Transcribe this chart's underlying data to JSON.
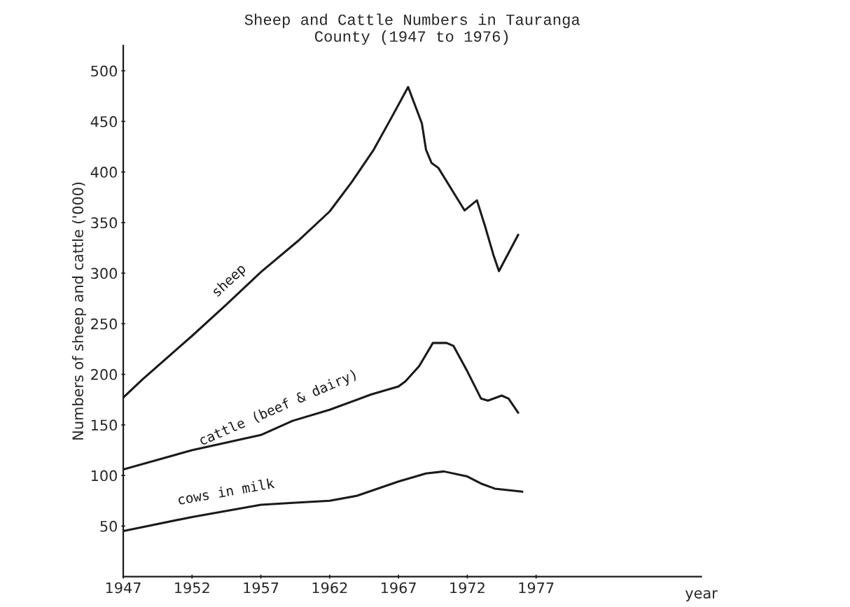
{
  "chart_data": {
    "type": "line",
    "title": "Sheep and Cattle Numbers in Tauranga\nCounty (1947 to 1976)",
    "xlabel": "year",
    "ylabel": "Numbers of sheep and cattle ('000)",
    "xlim": [
      1947,
      1989
    ],
    "xticks": [
      1947,
      1952,
      1957,
      1962,
      1967,
      1972,
      1977
    ],
    "ylim": [
      0,
      525
    ],
    "yticks": [
      50,
      100,
      150,
      200,
      250,
      300,
      350,
      400,
      450,
      500
    ],
    "grid": false,
    "legend": false,
    "marker": "none",
    "line_style": "solid",
    "series": [
      {
        "name": "sheep",
        "color": "#1a1a1a",
        "x": [
          1947,
          1948.4,
          1952,
          1954.5,
          1957,
          1959.8,
          1962,
          1963.6,
          1965.2,
          1966.5,
          1967.7,
          1968.7,
          1969,
          1969.4,
          1969.9,
          1971.8,
          1972.7,
          1973.3,
          1973.9,
          1974.3,
          1975.7
        ],
        "values": [
          177,
          195,
          238,
          269,
          301,
          333,
          361,
          390,
          422,
          454,
          484,
          448,
          422,
          409,
          404,
          362,
          372,
          346,
          318,
          302,
          338
        ]
      },
      {
        "name": "cattle (beef & dairy)",
        "color": "#1a1a1a",
        "x": [
          1947,
          1952,
          1957,
          1959.3,
          1962,
          1965,
          1967,
          1967.5,
          1968.5,
          1969.5,
          1970.5,
          1971,
          1972,
          1973,
          1973.5,
          1974.5,
          1975,
          1975.7
        ],
        "values": [
          106,
          125,
          140,
          154,
          165,
          180,
          188,
          193,
          208,
          231,
          231,
          228,
          203,
          176,
          174,
          179,
          176,
          162
        ]
      },
      {
        "name": "cows in milk",
        "color": "#1a1a1a",
        "x": [
          1947,
          1952,
          1957,
          1959.3,
          1962,
          1964,
          1967,
          1969,
          1970.3,
          1972,
          1973,
          1974,
          1976
        ],
        "values": [
          45,
          59,
          71,
          73,
          75,
          80,
          94,
          102,
          104,
          99,
          92,
          87,
          84
        ]
      }
    ]
  }
}
